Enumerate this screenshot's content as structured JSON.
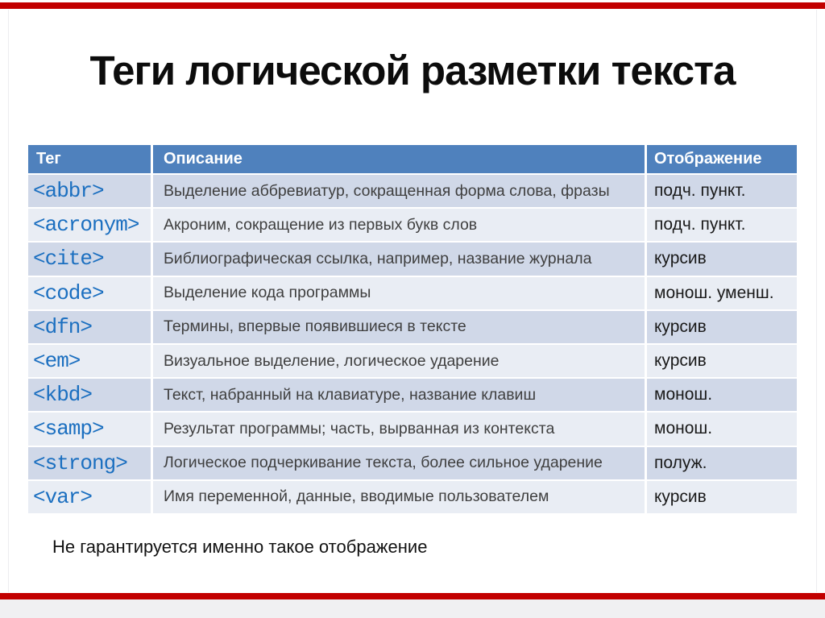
{
  "slide": {
    "title": "Теги логической разметки текста",
    "footnote": "Не гарантируется именно такое отображение"
  },
  "table": {
    "headers": {
      "tag": "Тег",
      "description": "Описание",
      "display": "Отображение"
    },
    "rows": [
      {
        "tag": "<abbr>",
        "description": "Выделение аббревиатур, сокращенная форма слова, фразы",
        "display": "подч. пункт."
      },
      {
        "tag": "<acronym>",
        "description": "Акроним, сокращение из первых букв слов",
        "display": "подч. пункт."
      },
      {
        "tag": "<cite>",
        "description": "Библиографическая ссылка, например, название журнала",
        "display": "курсив"
      },
      {
        "tag": "<code>",
        "description": "Выделение кода программы",
        "display": "монош. уменш."
      },
      {
        "tag": "<dfn>",
        "description": "Термины, впервые появившиеся в тексте",
        "display": "курсив"
      },
      {
        "tag": "<em>",
        "description": "Визуальное выделение, логическое ударение",
        "display": "курсив"
      },
      {
        "tag": "<kbd>",
        "description": "Текст, набранный на клавиатуре, название клавиш",
        "display": "монош."
      },
      {
        "tag": "<samp>",
        "description": "Результат программы; часть, вырванная из контекста",
        "display": "монош."
      },
      {
        "tag": "<strong>",
        "description": "Логическое подчеркивание текста, более сильное ударение",
        "display": "полуж."
      },
      {
        "tag": "<var>",
        "description": "Имя переменной, данные, вводимые пользователем",
        "display": "курсив"
      }
    ]
  },
  "colors": {
    "accent_bar": "#c20000",
    "bottom_strip": "#f0f0f2",
    "header_bg": "#4f81bd",
    "row_odd": "#d0d8e8",
    "row_even": "#e9edf4",
    "tag_text": "#1b6fc0",
    "description_text": "#3f3f3f",
    "display_text": "#1a1a1a",
    "title_text": "#0c0c0c"
  }
}
